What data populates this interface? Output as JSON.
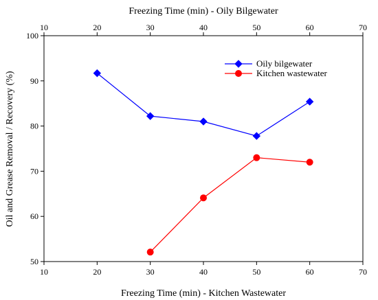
{
  "chart_data": {
    "type": "line",
    "title": "",
    "x_bottom_label": "Freezing Time (min) - Kitchen Wastewater",
    "x_top_label": "Freezing Time (min) - Oily Bilgewater",
    "ylabel": "Oil and Grease Removal / Recovery (%)",
    "xlim": [
      10,
      70
    ],
    "ylim": [
      50,
      100
    ],
    "x_ticks": [
      10,
      20,
      30,
      40,
      50,
      60,
      70
    ],
    "y_ticks": [
      50,
      60,
      70,
      80,
      90,
      100
    ],
    "grid": false,
    "legend_position": "top-right",
    "series": [
      {
        "name": "Oily bilgewater",
        "axis": "top",
        "marker": "diamond",
        "color": "#0000ff",
        "x": [
          20,
          30,
          40,
          50,
          60
        ],
        "y": [
          91.7,
          82.2,
          81.0,
          77.8,
          85.4
        ]
      },
      {
        "name": "Kitchen wastewater",
        "axis": "bottom",
        "marker": "circle",
        "color": "#ff0000",
        "x": [
          30,
          40,
          50,
          60
        ],
        "y": [
          52.1,
          64.1,
          73.0,
          72.0
        ]
      }
    ]
  }
}
